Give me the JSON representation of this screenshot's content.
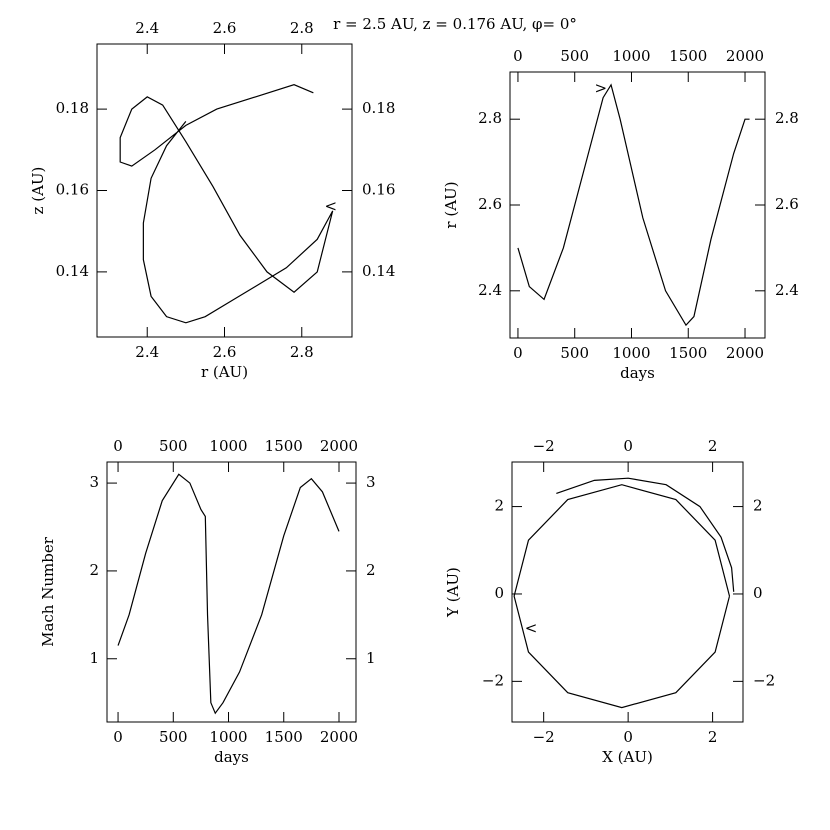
{
  "title": "r = 2.5 AU, z = 0.176 AU, φ= 0°",
  "chart_data": [
    {
      "type": "line",
      "xlabel": "r (AU)",
      "ylabel": "z (AU)",
      "xlim": [
        2.27,
        2.93
      ],
      "ylim": [
        0.124,
        0.196
      ],
      "xticks": [
        2.4,
        2.6,
        2.8
      ],
      "yticks": [
        0.14,
        0.16,
        0.18
      ],
      "color": "#000000",
      "x": [
        2.83,
        2.78,
        2.68,
        2.58,
        2.5,
        2.42,
        2.36,
        2.33,
        2.33,
        2.36,
        2.4,
        2.44,
        2.5,
        2.57,
        2.64,
        2.71,
        2.78,
        2.84,
        2.88,
        2.84,
        2.76,
        2.69,
        2.62,
        2.55,
        2.5,
        2.45,
        2.41,
        2.39,
        2.39,
        2.41,
        2.45,
        2.5
      ],
      "y": [
        0.184,
        0.186,
        0.183,
        0.18,
        0.176,
        0.17,
        0.166,
        0.167,
        0.173,
        0.18,
        0.183,
        0.181,
        0.172,
        0.161,
        0.149,
        0.14,
        0.135,
        0.14,
        0.155,
        0.148,
        0.141,
        0.137,
        0.133,
        0.129,
        0.1275,
        0.129,
        0.134,
        0.143,
        0.152,
        0.163,
        0.171,
        0.177
      ],
      "annotations": [
        {
          "text": "<",
          "x": 2.875,
          "y": 0.156
        }
      ]
    },
    {
      "type": "line",
      "xlabel": "days",
      "ylabel": "r (AU)",
      "xlim": [
        -70,
        2176
      ],
      "ylim": [
        2.29,
        2.91
      ],
      "xticks": [
        0,
        500,
        1000,
        1500,
        2000
      ],
      "yticks": [
        2.4,
        2.6,
        2.8
      ],
      "color": "#000000",
      "x": [
        0,
        100,
        230,
        400,
        600,
        750,
        820,
        900,
        1100,
        1300,
        1480,
        1550,
        1700,
        1900,
        2000,
        2040
      ],
      "y": [
        2.5,
        2.41,
        2.38,
        2.5,
        2.7,
        2.85,
        2.88,
        2.8,
        2.57,
        2.4,
        2.32,
        2.34,
        2.52,
        2.72,
        2.8,
        2.8
      ],
      "annotations": [
        {
          "text": ">",
          "x": 730,
          "y": 2.87
        }
      ]
    },
    {
      "type": "line",
      "xlabel": "days",
      "ylabel": "Mach Number",
      "xlim": [
        -100,
        2154
      ],
      "ylim": [
        0.28,
        3.24
      ],
      "xticks": [
        0,
        500,
        1000,
        1500,
        2000
      ],
      "yticks": [
        1,
        2,
        3
      ],
      "color": "#000000",
      "x": [
        0,
        100,
        250,
        400,
        550,
        650,
        750,
        790,
        810,
        840,
        880,
        950,
        1100,
        1300,
        1500,
        1650,
        1750,
        1850,
        2000
      ],
      "y": [
        1.15,
        1.5,
        2.2,
        2.8,
        3.1,
        3.0,
        2.7,
        2.62,
        1.5,
        0.5,
        0.38,
        0.5,
        0.85,
        1.5,
        2.4,
        2.95,
        3.05,
        2.9,
        2.45
      ]
    },
    {
      "type": "line",
      "xlabel": "X (AU)",
      "ylabel": "Y (AU)",
      "xlim": [
        -2.75,
        2.72
      ],
      "ylim": [
        -2.93,
        3.02
      ],
      "xticks": [
        {
          "value": -2,
          "label": "−2"
        },
        0,
        2
      ],
      "yticks": [
        {
          "value": -2,
          "label": "−2"
        },
        0,
        2
      ],
      "color": "#000000",
      "x": [
        2.4,
        2.06,
        1.13,
        -0.15,
        -1.43,
        -2.36,
        -2.7,
        -2.36,
        -1.43,
        -0.15,
        1.13,
        2.06,
        2.4,
        null,
        -1.7,
        -0.8,
        0,
        0.9,
        1.7,
        2.2,
        2.45,
        2.5
      ],
      "y": [
        -0.05,
        1.23,
        2.16,
        2.5,
        2.16,
        1.23,
        -0.05,
        -1.33,
        -2.26,
        -2.6,
        -2.26,
        -1.33,
        -0.05,
        null,
        2.3,
        2.6,
        2.65,
        2.5,
        2.0,
        1.3,
        0.6,
        0.05
      ],
      "annotations": [
        {
          "text": "<",
          "x": -2.3,
          "y": -0.8
        }
      ]
    }
  ]
}
